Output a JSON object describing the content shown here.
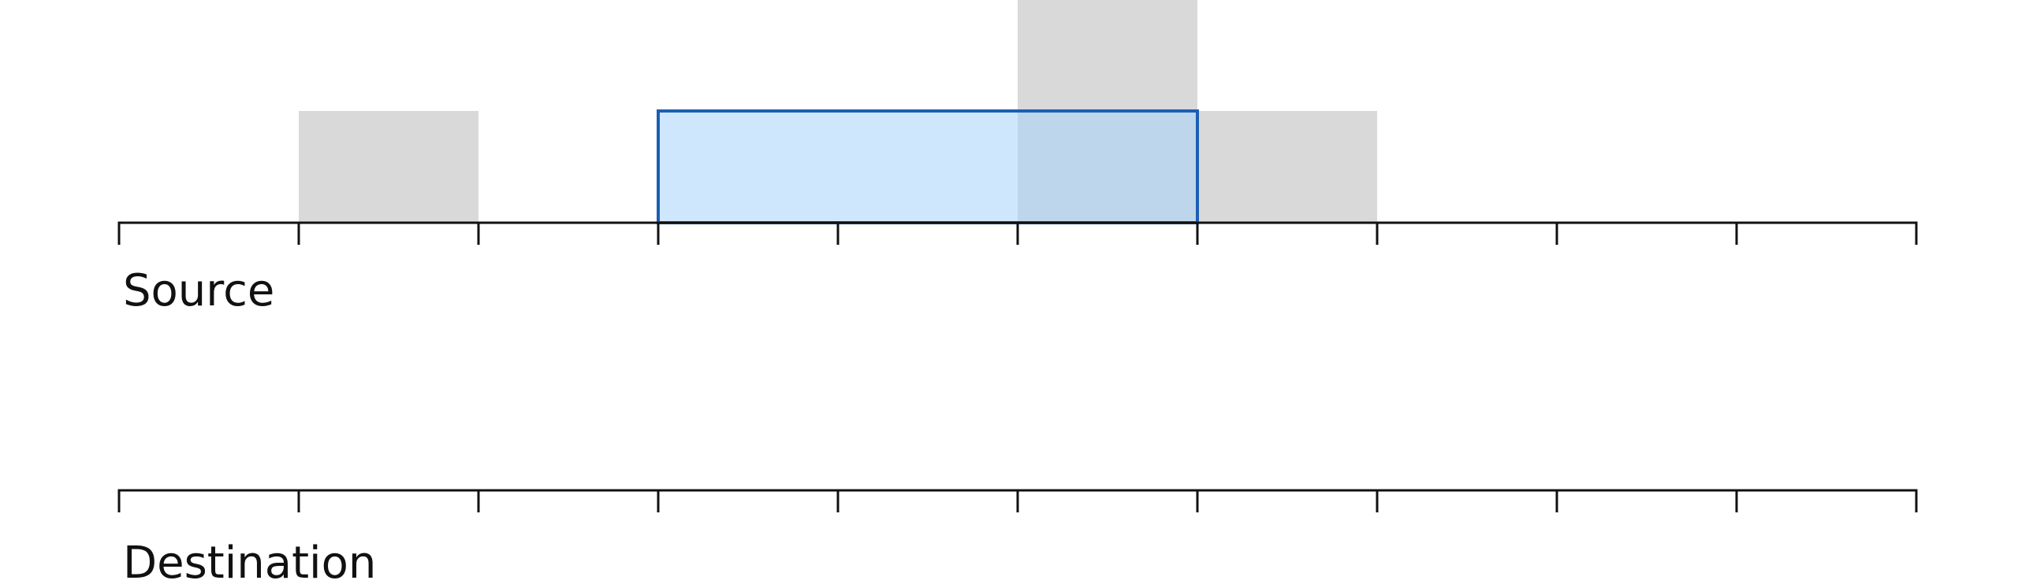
{
  "tracks": {
    "source_label": "Source",
    "destination_label": "Destination"
  },
  "timeline": {
    "units": 10
  },
  "source_blocks": [
    {
      "start": 1,
      "length": 1,
      "rows": 1
    },
    {
      "start": 5,
      "length": 1,
      "rows": 2
    },
    {
      "start": 6,
      "length": 1,
      "rows": 1
    }
  ],
  "selection": {
    "start": 3,
    "length": 3,
    "rows": 1
  },
  "colors": {
    "block_fill": "#d9d9d9",
    "selection_fill": "#a8d4fa",
    "selection_opacity": 0.55,
    "selection_stroke": "#1b5fb4",
    "axis": "#111111"
  }
}
